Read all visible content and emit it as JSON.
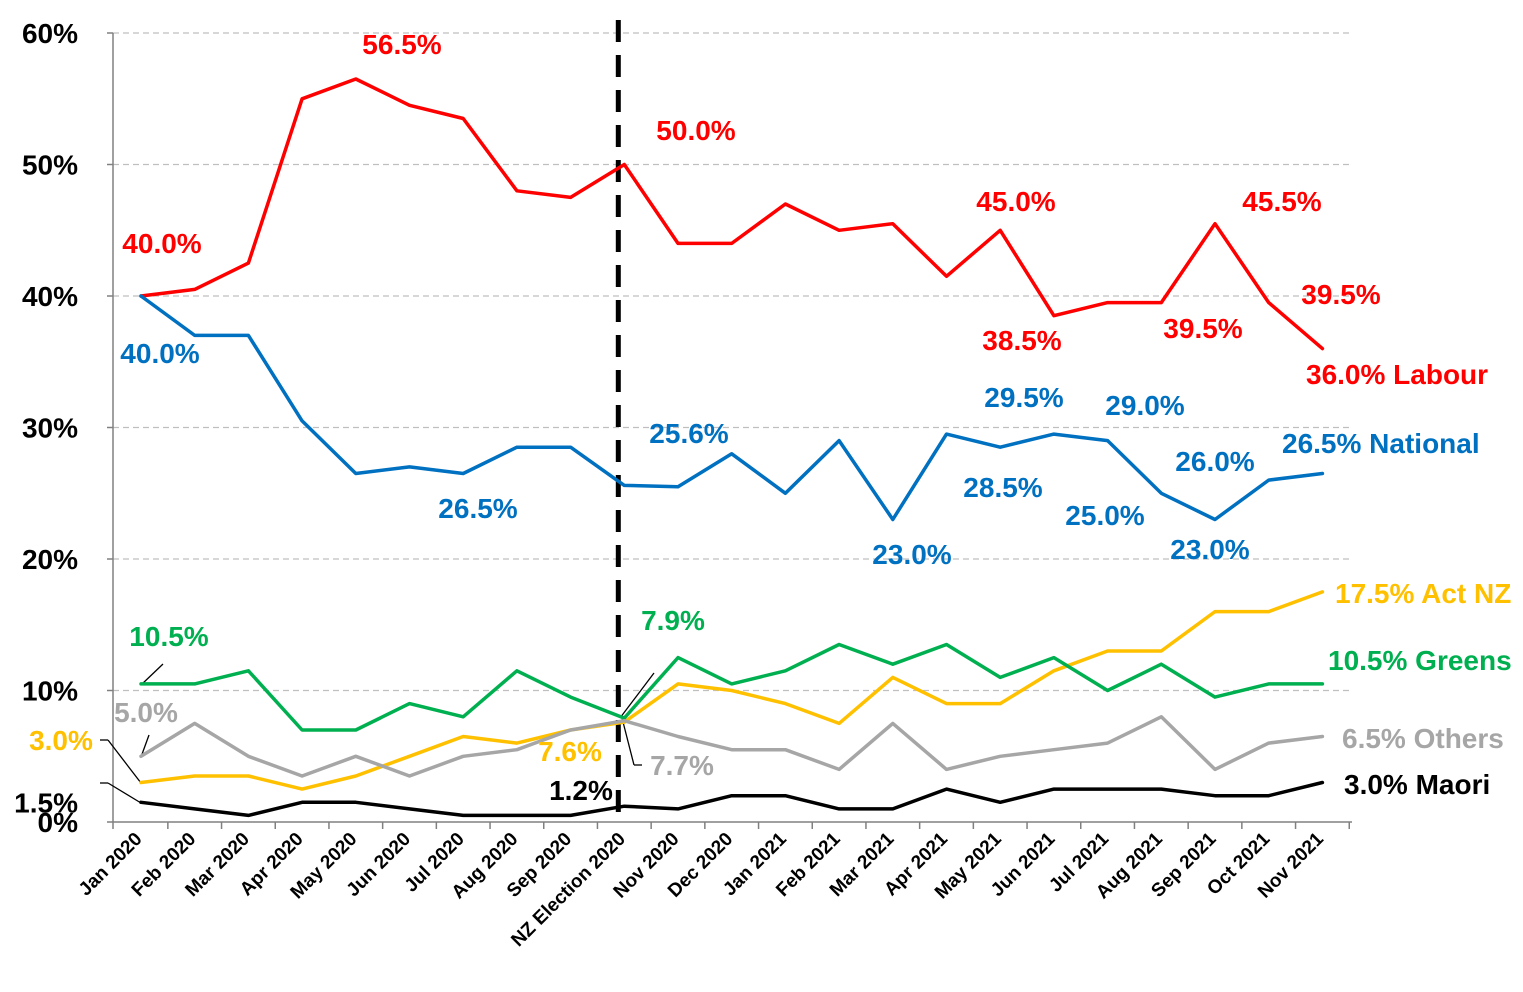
{
  "chart_data": {
    "type": "line",
    "title": "",
    "xlabel": "",
    "ylabel": "",
    "ylim": [
      0,
      60
    ],
    "grid": true,
    "y_ticks": [
      {
        "value": 0,
        "label": "0%"
      },
      {
        "value": 1.5,
        "label": "1.5%"
      },
      {
        "value": 10,
        "label": "10%"
      },
      {
        "value": 20,
        "label": "20%"
      },
      {
        "value": 30,
        "label": "30%"
      },
      {
        "value": 40,
        "label": "40%"
      },
      {
        "value": 50,
        "label": "50%"
      },
      {
        "value": 60,
        "label": "60%"
      }
    ],
    "categories": [
      "Jan 2020",
      "Feb 2020",
      "Mar 2020",
      "Apr 2020",
      "May 2020",
      "Jun 2020",
      "Jul 2020",
      "Aug 2020",
      "Sep 2020",
      "NZ Election 2020",
      "Nov 2020",
      "Dec 2020",
      "Jan 2021",
      "Feb 2021",
      "Mar 2021",
      "Apr 2021",
      "May 2021",
      "Jun 2021",
      "Jul 2021",
      "Aug 2021",
      "Sep 2021",
      "Oct 2021",
      "Nov 2021"
    ],
    "marker_line": {
      "category_index": 9,
      "style": "dashed",
      "color": "#000000"
    },
    "series": [
      {
        "name": "Labour",
        "color": "#FF0000",
        "values": [
          40,
          40.5,
          42.5,
          55,
          56.5,
          54.5,
          53.5,
          48,
          47.5,
          50,
          44,
          44,
          47,
          45,
          45.5,
          41.5,
          45,
          38.5,
          39.5,
          39.5,
          45.5,
          39.5,
          36
        ]
      },
      {
        "name": "National",
        "color": "#0070C0",
        "values": [
          40,
          37,
          37,
          30.5,
          26.5,
          27,
          26.5,
          28.5,
          28.5,
          25.6,
          25.5,
          28,
          25,
          29,
          23,
          29.5,
          28.5,
          29.5,
          29,
          25,
          23,
          26,
          26.5
        ]
      },
      {
        "name": "Act NZ",
        "color": "#FFC000",
        "values": [
          3,
          3.5,
          3.5,
          2.5,
          3.5,
          5,
          6.5,
          6,
          7,
          7.6,
          10.5,
          10,
          9,
          7.5,
          11,
          9,
          9,
          11.5,
          13,
          13,
          16,
          16,
          17.5
        ]
      },
      {
        "name": "Greens",
        "color": "#00B050",
        "values": [
          10.5,
          10.5,
          11.5,
          7,
          7,
          9,
          8,
          11.5,
          9.5,
          7.9,
          12.5,
          10.5,
          11.5,
          13.5,
          12,
          13.5,
          11,
          12.5,
          10,
          12,
          9.5,
          10.5,
          10.5
        ]
      },
      {
        "name": "Others",
        "color": "#A6A6A6",
        "values": [
          5,
          7.5,
          5,
          3.5,
          5,
          3.5,
          5,
          5.5,
          7,
          7.7,
          6.5,
          5.5,
          5.5,
          4,
          7.5,
          4,
          5,
          5.5,
          6,
          8,
          4,
          6,
          6.5
        ]
      },
      {
        "name": "Maori",
        "color": "#000000",
        "values": [
          1.5,
          1,
          0.5,
          1.5,
          1.5,
          1,
          0.5,
          0.5,
          0.5,
          1.2,
          1,
          2,
          2,
          1,
          1,
          2.5,
          1.5,
          2.5,
          2.5,
          2.5,
          2,
          2,
          3
        ]
      }
    ],
    "data_labels": [
      {
        "series": "Labour",
        "text": "40.0%"
      },
      {
        "series": "Labour",
        "text": "56.5%"
      },
      {
        "series": "Labour",
        "text": "50.0%"
      },
      {
        "series": "Labour",
        "text": "45.0%"
      },
      {
        "series": "Labour",
        "text": "38.5%"
      },
      {
        "series": "Labour",
        "text": "39.5%"
      },
      {
        "series": "Labour",
        "text": "45.5%"
      },
      {
        "series": "Labour",
        "text": "39.5%"
      },
      {
        "series": "Labour",
        "text": "36.0% Labour"
      },
      {
        "series": "National",
        "text": "40.0%"
      },
      {
        "series": "National",
        "text": "26.5%"
      },
      {
        "series": "National",
        "text": "25.6%"
      },
      {
        "series": "National",
        "text": "23.0%"
      },
      {
        "series": "National",
        "text": "29.5%"
      },
      {
        "series": "National",
        "text": "28.5%"
      },
      {
        "series": "National",
        "text": "29.0%"
      },
      {
        "series": "National",
        "text": "25.0%"
      },
      {
        "series": "National",
        "text": "26.0%"
      },
      {
        "series": "National",
        "text": "23.0%"
      },
      {
        "series": "National",
        "text": "26.5% National"
      },
      {
        "series": "Act NZ",
        "text": "3.0%"
      },
      {
        "series": "Act NZ",
        "text": "7.6%"
      },
      {
        "series": "Act NZ",
        "text": "17.5% Act NZ"
      },
      {
        "series": "Greens",
        "text": "10.5%"
      },
      {
        "series": "Greens",
        "text": "7.9%"
      },
      {
        "series": "Greens",
        "text": "10.5% Greens"
      },
      {
        "series": "Others",
        "text": "5.0%"
      },
      {
        "series": "Others",
        "text": "7.7%"
      },
      {
        "series": "Others",
        "text": "6.5% Others"
      },
      {
        "series": "Maori",
        "text": "1.2%"
      },
      {
        "series": "Maori",
        "text": "3.0% Maori"
      }
    ]
  }
}
